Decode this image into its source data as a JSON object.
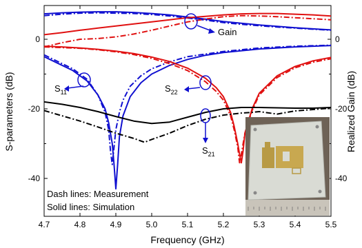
{
  "chart_data": {
    "type": "line",
    "xlabel": "Frequency (GHz)",
    "ylabel": "S-parameters (dB)",
    "y2label": "Realized Gain (dB)",
    "xlim": [
      4.7,
      5.5
    ],
    "ylim": [
      -45,
      8
    ],
    "y2lim": [
      -45,
      8
    ],
    "xticks": [
      "4.7",
      "4.8",
      "4.9",
      "5.0",
      "5.1",
      "5.2",
      "5.3",
      "5.4",
      "5.5"
    ],
    "yticks": [
      "0",
      "-20",
      "-40"
    ],
    "y2ticks": [
      "0",
      "-20",
      "-40"
    ],
    "annotations": {
      "gain": "Gain",
      "s11_main": "S",
      "s11_sub": "11",
      "s22_main": "S",
      "s22_sub": "22",
      "s21_main": "S",
      "s21_sub": "21"
    },
    "notes": [
      "Dash lines: Measurement",
      "Solid lines: Simulation"
    ],
    "series": [
      {
        "color": "#1010d0",
        "style": "solid",
        "x": [
          4.7,
          4.75,
          4.8,
          4.85,
          4.9,
          4.95,
          5.0,
          5.05,
          5.1,
          5.15,
          5.2,
          5.25,
          5.3,
          5.35,
          5.4,
          5.45,
          5.5
        ],
        "values": [
          7.3,
          7.6,
          7.8,
          7.9,
          7.9,
          7.7,
          7.4,
          7.0,
          6.4,
          5.8,
          5.1,
          4.6,
          4.1,
          3.7,
          3.3,
          3.0,
          2.7
        ]
      },
      {
        "color": "#1010d0",
        "style": "dashdot",
        "x": [
          4.7,
          4.75,
          4.8,
          4.85,
          4.9,
          4.95,
          5.0,
          5.05,
          5.1,
          5.15,
          5.2,
          5.25,
          5.3,
          5.35,
          5.4,
          5.45,
          5.5
        ],
        "values": [
          6.8,
          7.2,
          7.5,
          7.6,
          7.5,
          7.4,
          7.1,
          6.7,
          6.1,
          5.5,
          4.8,
          4.3,
          3.9,
          3.5,
          3.2,
          2.9,
          2.6
        ]
      },
      {
        "color": "#e01010",
        "style": "solid",
        "x": [
          4.7,
          4.75,
          4.8,
          4.85,
          4.9,
          4.95,
          5.0,
          5.05,
          5.1,
          5.15,
          5.2,
          5.25,
          5.3,
          5.35,
          5.4,
          5.45,
          5.5
        ],
        "values": [
          1.3,
          1.9,
          2.6,
          3.2,
          3.8,
          4.4,
          5.0,
          5.6,
          6.2,
          6.6,
          7.0,
          7.3,
          7.4,
          7.4,
          7.2,
          7.0,
          6.7
        ]
      },
      {
        "color": "#e01010",
        "style": "dashdot",
        "x": [
          4.7,
          4.75,
          4.8,
          4.85,
          4.9,
          4.95,
          5.0,
          5.05,
          5.1,
          5.15,
          5.2,
          5.25,
          5.3,
          5.35,
          5.4,
          5.45,
          5.5
        ],
        "values": [
          -2.2,
          -1.0,
          0.0,
          0.2,
          0.7,
          1.5,
          2.6,
          3.8,
          5.0,
          5.8,
          6.5,
          6.8,
          6.7,
          6.5,
          6.2,
          5.9,
          5.6
        ]
      },
      {
        "color": "#1010d0",
        "style": "solid",
        "x": [
          4.7,
          4.74,
          4.78,
          4.82,
          4.85,
          4.87,
          4.88,
          4.89,
          4.895,
          4.9,
          4.905,
          4.91,
          4.92,
          4.94,
          4.97,
          5.0,
          5.05,
          5.1,
          5.15,
          5.2,
          5.3,
          5.4,
          5.5
        ],
        "values": [
          -5.0,
          -7.0,
          -9.0,
          -12.0,
          -16.0,
          -20.0,
          -24.0,
          -30.0,
          -36.0,
          -43.0,
          -36.0,
          -28.0,
          -22.0,
          -16.5,
          -12.5,
          -10.0,
          -7.5,
          -5.8,
          -4.6,
          -3.8,
          -2.8,
          -2.2,
          -1.8
        ]
      },
      {
        "color": "#1010d0",
        "style": "dashdot",
        "x": [
          4.7,
          4.74,
          4.78,
          4.82,
          4.85,
          4.87,
          4.88,
          4.885,
          4.89,
          4.895,
          4.9,
          4.91,
          4.92,
          4.94,
          4.97,
          5.0,
          5.05,
          5.1,
          5.2,
          5.3,
          5.4,
          5.5
        ],
        "values": [
          -4.5,
          -6.5,
          -8.5,
          -11.5,
          -16.0,
          -21.0,
          -26.0,
          -32.0,
          -36.0,
          -31.0,
          -26.0,
          -21.0,
          -17.5,
          -13.5,
          -10.5,
          -8.5,
          -6.5,
          -5.0,
          -3.5,
          -2.5,
          -2.0,
          -1.7
        ]
      },
      {
        "color": "#e01010",
        "style": "solid",
        "x": [
          4.7,
          4.75,
          4.8,
          4.85,
          4.9,
          4.95,
          5.0,
          5.05,
          5.1,
          5.15,
          5.18,
          5.2,
          5.22,
          5.23,
          5.24,
          5.245,
          5.25,
          5.255,
          5.26,
          5.28,
          5.3,
          5.35,
          5.4,
          5.45,
          5.5
        ],
        "values": [
          -2.0,
          -2.2,
          -2.5,
          -2.9,
          -3.4,
          -4.1,
          -5.1,
          -6.4,
          -8.3,
          -11.2,
          -13.9,
          -16.5,
          -21.0,
          -25.0,
          -30.0,
          -33.0,
          -35.5,
          -32.0,
          -27.0,
          -20.0,
          -15.5,
          -10.5,
          -7.8,
          -6.2,
          -5.2
        ]
      },
      {
        "color": "#e01010",
        "style": "dashdot",
        "x": [
          4.7,
          4.75,
          4.8,
          4.85,
          4.9,
          4.95,
          5.0,
          5.05,
          5.1,
          5.15,
          5.18,
          5.2,
          5.22,
          5.23,
          5.24,
          5.245,
          5.25,
          5.26,
          5.28,
          5.3,
          5.35,
          5.4,
          5.45,
          5.5
        ],
        "values": [
          -2.2,
          -2.4,
          -2.6,
          -3.0,
          -3.6,
          -4.4,
          -5.5,
          -7.0,
          -9.0,
          -12.2,
          -15.0,
          -17.5,
          -22.0,
          -26.0,
          -31.0,
          -35.5,
          -33.0,
          -27.0,
          -20.5,
          -16.0,
          -11.0,
          -8.2,
          -6.6,
          -5.6
        ]
      },
      {
        "color": "#000000",
        "style": "solid",
        "x": [
          4.7,
          4.75,
          4.8,
          4.85,
          4.9,
          4.95,
          5.0,
          5.05,
          5.1,
          5.15,
          5.2,
          5.25,
          5.3,
          5.35,
          5.4,
          5.45,
          5.5
        ],
        "values": [
          -18.0,
          -18.7,
          -19.6,
          -20.8,
          -22.2,
          -23.5,
          -24.2,
          -23.8,
          -22.4,
          -21.0,
          -20.0,
          -19.6,
          -19.6,
          -19.7,
          -19.8,
          -19.8,
          -19.6
        ]
      },
      {
        "color": "#000000",
        "style": "dashdot",
        "x": [
          4.7,
          4.75,
          4.8,
          4.85,
          4.9,
          4.95,
          4.98,
          5.0,
          5.05,
          5.1,
          5.15,
          5.2,
          5.25,
          5.28,
          5.3,
          5.35,
          5.4,
          5.45,
          5.5
        ],
        "values": [
          -20.5,
          -22.0,
          -23.5,
          -25.2,
          -27.0,
          -28.5,
          -29.6,
          -28.8,
          -27.0,
          -24.8,
          -23.0,
          -21.8,
          -21.2,
          -21.0,
          -20.8,
          -21.5,
          -20.6,
          -20.2,
          -19.8
        ]
      }
    ]
  }
}
